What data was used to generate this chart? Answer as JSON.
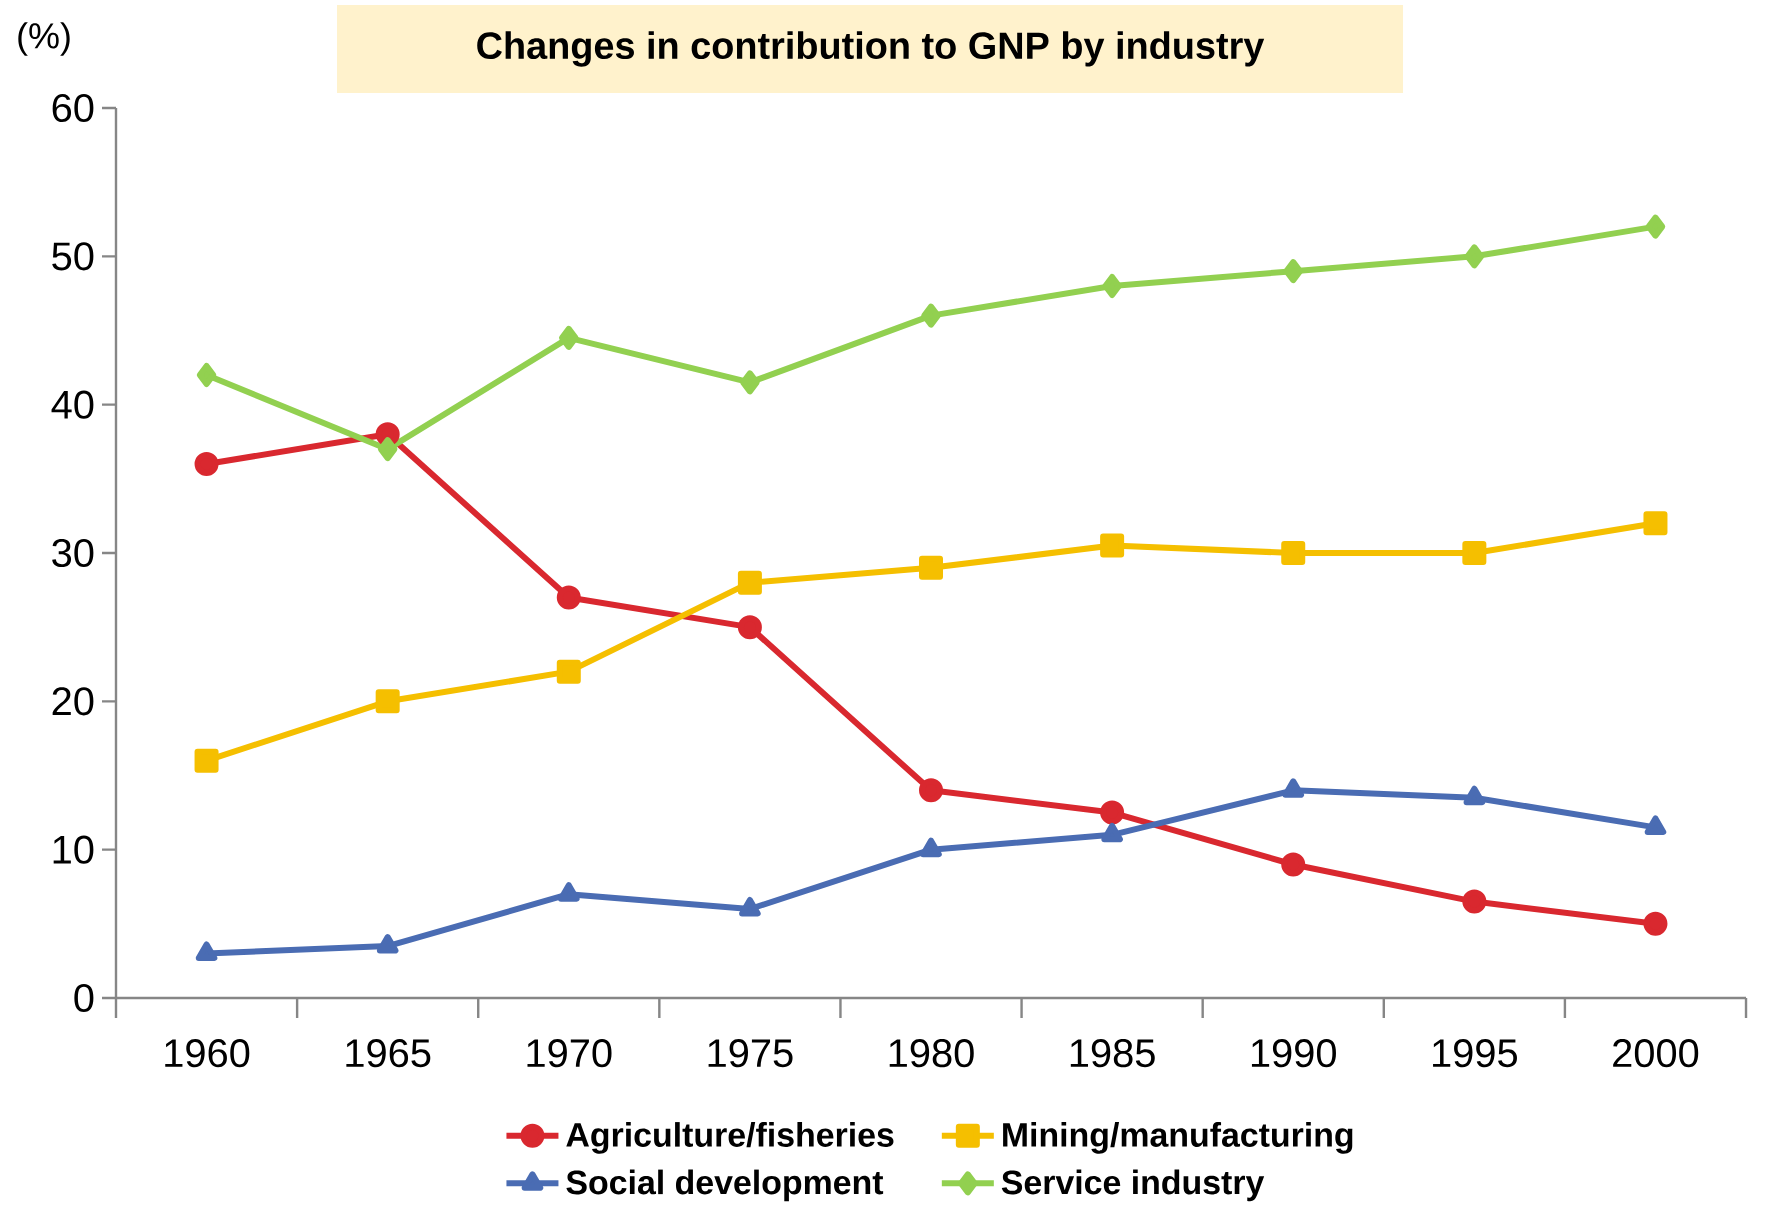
{
  "chart_data": {
    "type": "line",
    "title": "Changes in contribution to GNP by industry",
    "ylabel": "(%)",
    "categories": [
      "1960",
      "1965",
      "1970",
      "1975",
      "1980",
      "1985",
      "1990",
      "1995",
      "2000"
    ],
    "series": [
      {
        "name": "Agriculture/fisheries",
        "color": "#d9282f",
        "marker": "circle",
        "values": [
          36,
          38,
          27,
          25,
          14,
          12.5,
          9,
          6.5,
          5
        ]
      },
      {
        "name": "Mining/manufacturing",
        "color": "#f5bf00",
        "marker": "square",
        "values": [
          16,
          20,
          22,
          28,
          29,
          30.5,
          30,
          30,
          32
        ]
      },
      {
        "name": "Social development",
        "color": "#4a6cb3",
        "marker": "triangle",
        "values": [
          3,
          3.5,
          7,
          6,
          10,
          11,
          14,
          13.5,
          11.5
        ]
      },
      {
        "name": "Service industry",
        "color": "#92d050",
        "marker": "diamond",
        "values": [
          42,
          37,
          44.5,
          41.5,
          46,
          48,
          49,
          50,
          52
        ]
      }
    ],
    "ylim": [
      0,
      60
    ],
    "yticks": [
      0,
      10,
      20,
      30,
      40,
      50,
      60
    ],
    "grid": false,
    "legend": "bottom",
    "line_style": "solid"
  }
}
